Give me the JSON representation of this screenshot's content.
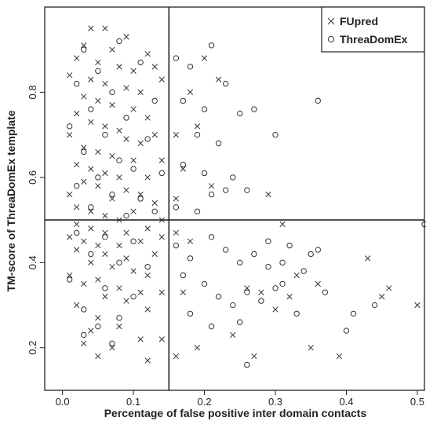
{
  "chart_data": {
    "type": "scatter",
    "xlabel": "Percentage of false positive inter domain contacts",
    "ylabel": "TM-score of ThreaDomEx template",
    "xlim": [
      -0.025,
      0.51
    ],
    "ylim": [
      0.1,
      1.0
    ],
    "xticks": [
      0.0,
      0.1,
      0.2,
      0.3,
      0.4,
      0.5
    ],
    "xtick_labels": [
      "0.0",
      "0.1",
      "0.2",
      "0.3",
      "0.4",
      "0.5"
    ],
    "yticks": [
      0.2,
      0.4,
      0.6,
      0.8
    ],
    "ytick_labels": [
      "0.2",
      "0.4",
      "0.6",
      "0.8"
    ],
    "reference_lines": {
      "vertical_x": 0.15,
      "horizontal_y": 0.5
    },
    "grid": false,
    "legend_position": "top-right",
    "colors": {
      "marker": "#333333",
      "axes": "#222222"
    },
    "series": [
      {
        "name": "FUpred",
        "marker": "x",
        "points": [
          [
            0.04,
            0.95
          ],
          [
            0.06,
            0.95
          ],
          [
            0.09,
            0.93
          ],
          [
            0.03,
            0.91
          ],
          [
            0.07,
            0.9
          ],
          [
            0.12,
            0.89
          ],
          [
            0.02,
            0.88
          ],
          [
            0.05,
            0.87
          ],
          [
            0.08,
            0.86
          ],
          [
            0.1,
            0.85
          ],
          [
            0.13,
            0.86
          ],
          [
            0.01,
            0.84
          ],
          [
            0.04,
            0.83
          ],
          [
            0.06,
            0.82
          ],
          [
            0.09,
            0.81
          ],
          [
            0.11,
            0.8
          ],
          [
            0.14,
            0.83
          ],
          [
            0.03,
            0.79
          ],
          [
            0.05,
            0.78
          ],
          [
            0.07,
            0.77
          ],
          [
            0.1,
            0.76
          ],
          [
            0.02,
            0.75
          ],
          [
            0.12,
            0.74
          ],
          [
            0.04,
            0.73
          ],
          [
            0.06,
            0.72
          ],
          [
            0.08,
            0.71
          ],
          [
            0.01,
            0.7
          ],
          [
            0.09,
            0.69
          ],
          [
            0.11,
            0.68
          ],
          [
            0.13,
            0.7
          ],
          [
            0.03,
            0.67
          ],
          [
            0.05,
            0.66
          ],
          [
            0.07,
            0.65
          ],
          [
            0.1,
            0.64
          ],
          [
            0.02,
            0.63
          ],
          [
            0.14,
            0.64
          ],
          [
            0.04,
            0.62
          ],
          [
            0.06,
            0.61
          ],
          [
            0.08,
            0.6
          ],
          [
            0.12,
            0.6
          ],
          [
            0.03,
            0.59
          ],
          [
            0.05,
            0.58
          ],
          [
            0.09,
            0.57
          ],
          [
            0.01,
            0.56
          ],
          [
            0.11,
            0.56
          ],
          [
            0.07,
            0.55
          ],
          [
            0.13,
            0.54
          ],
          [
            0.02,
            0.53
          ],
          [
            0.04,
            0.52
          ],
          [
            0.06,
            0.51
          ],
          [
            0.1,
            0.52
          ],
          [
            0.08,
            0.5
          ],
          [
            0.14,
            0.5
          ],
          [
            0.16,
            0.55
          ],
          [
            0.17,
            0.62
          ],
          [
            0.18,
            0.8
          ],
          [
            0.2,
            0.88
          ],
          [
            0.22,
            0.83
          ],
          [
            0.16,
            0.7
          ],
          [
            0.19,
            0.72
          ],
          [
            0.21,
            0.58
          ],
          [
            0.02,
            0.49
          ],
          [
            0.04,
            0.48
          ],
          [
            0.06,
            0.47
          ],
          [
            0.09,
            0.47
          ],
          [
            0.12,
            0.48
          ],
          [
            0.01,
            0.46
          ],
          [
            0.03,
            0.45
          ],
          [
            0.05,
            0.44
          ],
          [
            0.08,
            0.44
          ],
          [
            0.11,
            0.45
          ],
          [
            0.14,
            0.46
          ],
          [
            0.02,
            0.43
          ],
          [
            0.06,
            0.42
          ],
          [
            0.09,
            0.41
          ],
          [
            0.13,
            0.42
          ],
          [
            0.04,
            0.4
          ],
          [
            0.07,
            0.39
          ],
          [
            0.1,
            0.38
          ],
          [
            0.01,
            0.37
          ],
          [
            0.05,
            0.36
          ],
          [
            0.12,
            0.37
          ],
          [
            0.03,
            0.35
          ],
          [
            0.08,
            0.34
          ],
          [
            0.11,
            0.33
          ],
          [
            0.06,
            0.32
          ],
          [
            0.14,
            0.33
          ],
          [
            0.09,
            0.31
          ],
          [
            0.02,
            0.3
          ],
          [
            0.12,
            0.29
          ],
          [
            0.05,
            0.27
          ],
          [
            0.08,
            0.25
          ],
          [
            0.04,
            0.24
          ],
          [
            0.11,
            0.22
          ],
          [
            0.03,
            0.21
          ],
          [
            0.07,
            0.2
          ],
          [
            0.14,
            0.22
          ],
          [
            0.05,
            0.18
          ],
          [
            0.12,
            0.17
          ],
          [
            0.16,
            0.47
          ],
          [
            0.18,
            0.45
          ],
          [
            0.17,
            0.33
          ],
          [
            0.19,
            0.2
          ],
          [
            0.16,
            0.18
          ],
          [
            0.26,
            0.34
          ],
          [
            0.28,
            0.33
          ],
          [
            0.24,
            0.23
          ],
          [
            0.27,
            0.18
          ],
          [
            0.3,
            0.29
          ],
          [
            0.32,
            0.32
          ],
          [
            0.36,
            0.35
          ],
          [
            0.39,
            0.18
          ],
          [
            0.43,
            0.41
          ],
          [
            0.45,
            0.32
          ],
          [
            0.5,
            0.3
          ],
          [
            0.46,
            0.34
          ],
          [
            0.29,
            0.56
          ],
          [
            0.31,
            0.49
          ],
          [
            0.33,
            0.37
          ],
          [
            0.35,
            0.2
          ]
        ]
      },
      {
        "name": "ThreaDomEx",
        "marker": "o",
        "points": [
          [
            0.03,
            0.9
          ],
          [
            0.08,
            0.92
          ],
          [
            0.05,
            0.85
          ],
          [
            0.11,
            0.87
          ],
          [
            0.02,
            0.82
          ],
          [
            0.07,
            0.8
          ],
          [
            0.13,
            0.78
          ],
          [
            0.04,
            0.76
          ],
          [
            0.09,
            0.74
          ],
          [
            0.01,
            0.72
          ],
          [
            0.06,
            0.7
          ],
          [
            0.12,
            0.69
          ],
          [
            0.03,
            0.66
          ],
          [
            0.08,
            0.64
          ],
          [
            0.1,
            0.62
          ],
          [
            0.05,
            0.6
          ],
          [
            0.14,
            0.61
          ],
          [
            0.02,
            0.58
          ],
          [
            0.07,
            0.56
          ],
          [
            0.11,
            0.55
          ],
          [
            0.04,
            0.53
          ],
          [
            0.09,
            0.51
          ],
          [
            0.13,
            0.52
          ],
          [
            0.16,
            0.88
          ],
          [
            0.18,
            0.86
          ],
          [
            0.21,
            0.91
          ],
          [
            0.23,
            0.82
          ],
          [
            0.17,
            0.78
          ],
          [
            0.2,
            0.76
          ],
          [
            0.25,
            0.75
          ],
          [
            0.27,
            0.76
          ],
          [
            0.19,
            0.7
          ],
          [
            0.22,
            0.68
          ],
          [
            0.17,
            0.63
          ],
          [
            0.2,
            0.61
          ],
          [
            0.24,
            0.6
          ],
          [
            0.21,
            0.56
          ],
          [
            0.23,
            0.57
          ],
          [
            0.26,
            0.57
          ],
          [
            0.3,
            0.7
          ],
          [
            0.36,
            0.78
          ],
          [
            0.16,
            0.53
          ],
          [
            0.19,
            0.52
          ],
          [
            0.02,
            0.47
          ],
          [
            0.06,
            0.46
          ],
          [
            0.1,
            0.45
          ],
          [
            0.04,
            0.42
          ],
          [
            0.08,
            0.4
          ],
          [
            0.12,
            0.39
          ],
          [
            0.01,
            0.36
          ],
          [
            0.06,
            0.34
          ],
          [
            0.1,
            0.32
          ],
          [
            0.03,
            0.29
          ],
          [
            0.08,
            0.27
          ],
          [
            0.05,
            0.25
          ],
          [
            0.03,
            0.23
          ],
          [
            0.07,
            0.21
          ],
          [
            0.16,
            0.44
          ],
          [
            0.18,
            0.41
          ],
          [
            0.21,
            0.46
          ],
          [
            0.23,
            0.43
          ],
          [
            0.25,
            0.4
          ],
          [
            0.27,
            0.42
          ],
          [
            0.29,
            0.39
          ],
          [
            0.17,
            0.37
          ],
          [
            0.2,
            0.35
          ],
          [
            0.22,
            0.32
          ],
          [
            0.24,
            0.3
          ],
          [
            0.26,
            0.33
          ],
          [
            0.18,
            0.28
          ],
          [
            0.21,
            0.25
          ],
          [
            0.25,
            0.26
          ],
          [
            0.28,
            0.31
          ],
          [
            0.3,
            0.34
          ],
          [
            0.31,
            0.4
          ],
          [
            0.32,
            0.44
          ],
          [
            0.34,
            0.38
          ],
          [
            0.35,
            0.42
          ],
          [
            0.33,
            0.28
          ],
          [
            0.29,
            0.45
          ],
          [
            0.41,
            0.28
          ],
          [
            0.37,
            0.33
          ],
          [
            0.4,
            0.24
          ],
          [
            0.44,
            0.3
          ],
          [
            0.51,
            0.49
          ],
          [
            0.26,
            0.16
          ],
          [
            0.31,
            0.35
          ],
          [
            0.36,
            0.43
          ]
        ]
      }
    ]
  }
}
